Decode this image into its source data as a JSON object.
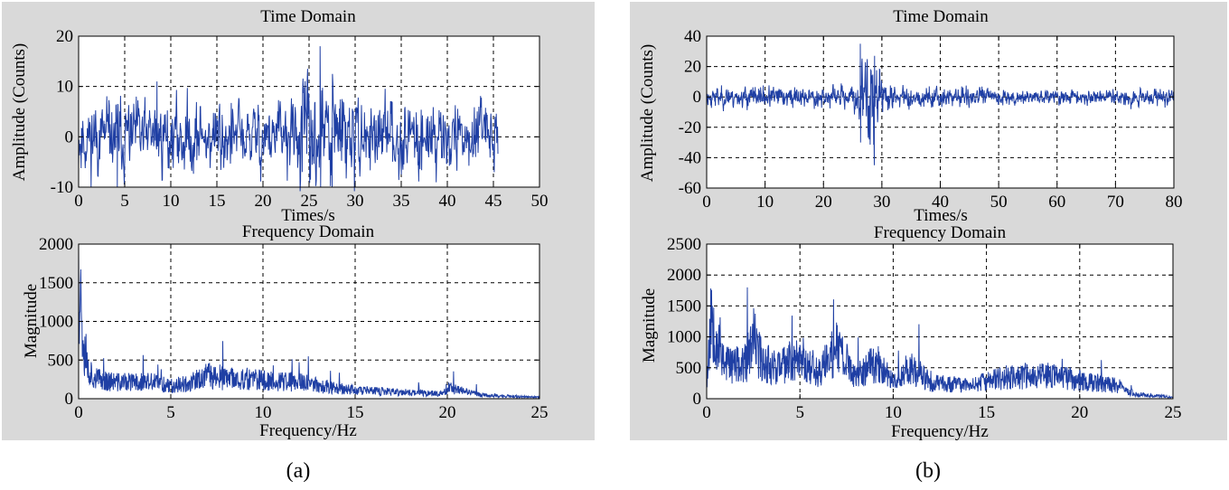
{
  "panels": [
    {
      "caption": "(a)",
      "time_title": "Time Domain",
      "freq_title": "Frequency Domain",
      "time_ylabel": "Amplitude (Counts)",
      "time_xlabel": "Times/s",
      "freq_ylabel": "Magnitude",
      "freq_xlabel": "Frequency/Hz"
    },
    {
      "caption": "(b)",
      "time_title": "Time Domain",
      "freq_title": "Frequency Domain",
      "time_ylabel": "Amplitude (Counts)",
      "time_xlabel": "Times/s",
      "freq_ylabel": "Magnitude",
      "freq_xlabel": "Frequency/Hz"
    }
  ],
  "colors": {
    "trace": "#1f3fa4",
    "panel_background": "#d9d9d9",
    "plot_background": "#ffffff"
  },
  "chart_data": [
    {
      "type": "line",
      "title": "Time Domain",
      "xlabel": "Times/s",
      "ylabel": "Amplitude (Counts)",
      "xlim": [
        0,
        50
      ],
      "ylim": [
        -10,
        20
      ],
      "xticks": [
        0,
        5,
        10,
        15,
        20,
        25,
        30,
        35,
        40,
        45,
        50
      ],
      "yticks": [
        -10,
        0,
        10,
        20
      ],
      "grid": true,
      "signal": "noise-like seismic trace, ~±5 counts, peaks near t≈26 s",
      "x": [
        0,
        2,
        4,
        5,
        8.5,
        10,
        15,
        20,
        24,
        25.5,
        26,
        27,
        28,
        30,
        35,
        40,
        42,
        43,
        45.5
      ],
      "y": [
        -6,
        7,
        -9,
        10,
        11,
        7,
        6,
        6,
        8,
        10,
        18,
        -10,
        11,
        8,
        6,
        5,
        7,
        -6,
        3
      ]
    },
    {
      "type": "line",
      "title": "Frequency Domain",
      "xlabel": "Frequency/Hz",
      "ylabel": "Magnitude",
      "xlim": [
        0,
        25
      ],
      "ylim": [
        0,
        2000
      ],
      "xticks": [
        0,
        5,
        10,
        15,
        20,
        25
      ],
      "yticks": [
        0,
        500,
        1000,
        1500,
        2000
      ],
      "grid": true,
      "x": [
        0,
        0.3,
        0.5,
        1,
        2,
        4,
        5,
        6,
        7,
        8,
        9,
        10,
        11,
        12,
        13,
        15,
        17,
        19.8,
        20,
        22,
        25
      ],
      "y": [
        1950,
        850,
        450,
        300,
        250,
        250,
        200,
        230,
        350,
        300,
        300,
        280,
        260,
        250,
        200,
        130,
        100,
        80,
        170,
        50,
        20
      ]
    },
    {
      "type": "line",
      "title": "Time Domain",
      "xlabel": "Times/s",
      "ylabel": "Amplitude (Counts)",
      "xlim": [
        0,
        80
      ],
      "ylim": [
        -60,
        40
      ],
      "xticks": [
        0,
        10,
        20,
        30,
        40,
        50,
        60,
        70,
        80
      ],
      "yticks": [
        -60,
        -40,
        -20,
        0,
        20,
        40
      ],
      "grid": true,
      "signal": "event between 25 s and 32 s, background noise elsewhere",
      "x": [
        0,
        3,
        5,
        10,
        18,
        20,
        24,
        26,
        27,
        28,
        29,
        30,
        32,
        35,
        40,
        50,
        60,
        67,
        70,
        80
      ],
      "y": [
        2,
        15,
        -10,
        6,
        5,
        -5,
        18,
        35,
        -40,
        -45,
        27,
        -20,
        10,
        8,
        6,
        5,
        6,
        12,
        4,
        2
      ]
    },
    {
      "type": "line",
      "title": "Frequency Domain",
      "xlabel": "Frequency/Hz",
      "ylabel": "Magnitude",
      "xlim": [
        0,
        25
      ],
      "ylim": [
        0,
        2500
      ],
      "xticks": [
        0,
        5,
        10,
        15,
        20,
        25
      ],
      "yticks": [
        0,
        500,
        1000,
        1500,
        2000,
        2500
      ],
      "grid": true,
      "x": [
        0,
        0.3,
        0.5,
        1,
        2,
        2.5,
        3,
        4,
        5,
        6,
        7,
        8,
        9,
        10,
        11,
        12,
        14,
        16,
        18,
        20,
        22,
        23,
        25
      ],
      "y": [
        300,
        1800,
        1200,
        700,
        600,
        1100,
        700,
        600,
        800,
        500,
        950,
        400,
        700,
        350,
        600,
        300,
        250,
        400,
        450,
        350,
        250,
        80,
        30
      ]
    }
  ]
}
